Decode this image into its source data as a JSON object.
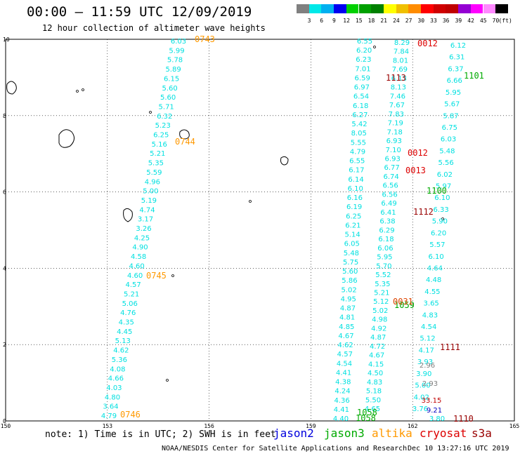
{
  "title": "00:00 – 11:59 UTC 12/09/2019",
  "subtitle": "12 hour collection of altimeter wave heights",
  "colorbar": {
    "colors": [
      "#808080",
      "#00e8e8",
      "#00b0f0",
      "#0000f0",
      "#00d000",
      "#00a000",
      "#008000",
      "#ffff00",
      "#f0c000",
      "#ff8c00",
      "#ff0000",
      "#d00000",
      "#c00000",
      "#9400d3",
      "#ff00ff",
      "#ff88ff",
      "#000000"
    ],
    "labels": [
      "3",
      "6",
      "9",
      "12",
      "15",
      "18",
      "21",
      "24",
      "27",
      "30",
      "33",
      "36",
      "39",
      "42",
      "45",
      "70",
      "(ft)"
    ]
  },
  "axes": {
    "x_ticks": [
      "150",
      "153",
      "156",
      "159",
      "162",
      "165"
    ],
    "y_ticks": [
      "0",
      "2",
      "4",
      "6",
      "8",
      "10"
    ]
  },
  "tracks": {
    "track_a": {
      "color": "#00e0e0",
      "values": [
        "6.03",
        "5.99",
        "5.78",
        "5.89",
        "6.15",
        "5.60",
        "5.60",
        "5.71",
        "6.32",
        "5.23",
        "6.25",
        "5.16",
        "5.21",
        "5.35",
        "5.59",
        "4.96",
        "5.00",
        "5.19",
        "4.74",
        "3.17",
        "3.26",
        "4.25",
        "4.90",
        "4.58",
        "4.60",
        "4.60",
        "4.57",
        "5.21",
        "5.06",
        "4.76",
        "4.35",
        "4.45",
        "5.13",
        "4.62",
        "5.36",
        "4.08",
        "4.66",
        "4.03",
        "4.80",
        "3.64",
        "4.79"
      ]
    },
    "track_b": {
      "color": "#00e0e0",
      "values": [
        "6.55",
        "6.20",
        "6.23",
        "7.01",
        "6.59",
        "6.97",
        "6.54",
        "6.18",
        "6.27",
        "5.42",
        "8.05",
        "5.55",
        "4.79",
        "6.55",
        "6.17",
        "6.14",
        "6.10",
        "6.16",
        "6.19",
        "6.25",
        "6.21",
        "5.14",
        "6.05",
        "5.48",
        "5.75",
        "5.60",
        "5.86",
        "5.02",
        "4.95",
        "4.87",
        "4.81",
        "4.85",
        "4.67",
        "4.62",
        "4.57",
        "4.54",
        "4.41",
        "4.38",
        "4.24",
        "4.36",
        "4.41",
        "4.40"
      ]
    },
    "track_c": {
      "color": "#00e0e0",
      "values": [
        "8.29",
        "7.84",
        "8.01",
        "7.69",
        "6.13",
        "8.13",
        "7.46",
        "7.67",
        "7.83",
        "7.19",
        "7.18",
        "6.93",
        "7.10",
        "6.93",
        "6.77",
        "6.74",
        "6.56",
        "6.56",
        "6.49",
        "6.41",
        "6.38",
        "6.29",
        "6.18",
        "6.06",
        "5.95",
        "5.70",
        "5.52",
        "5.35",
        "5.21",
        "5.12",
        "5.02",
        "4.98",
        "4.92",
        "4.87",
        "4.72",
        "4.67",
        "4.15",
        "4.50",
        "4.83",
        "5.18",
        "5.50",
        "4.65"
      ]
    },
    "track_d": {
      "color": "#00e0e0",
      "values": [
        "6.12",
        "6.31",
        "6.37",
        "6.66",
        "5.95",
        "5.67",
        "5.87",
        "6.75",
        "6.03",
        "5.48",
        "5.56",
        "6.02",
        "5.97",
        "6.10",
        "6.33",
        "5.90",
        "6.20",
        "5.57",
        "6.10",
        "4.64",
        "4.48",
        "4.55",
        "3.65",
        "4.83",
        "4.54",
        "5.12",
        "4.17",
        "3.93",
        "3.90",
        "5.00",
        "4.02",
        "3.76"
      ]
    },
    "track_e": {
      "color": "#808080",
      "values": [
        "2.96",
        "2.93"
      ]
    },
    "track_f": {
      "color": "#c00000",
      "values": [
        "33.15"
      ]
    },
    "track_g": {
      "color": "#0000c0",
      "values": [
        "9.21"
      ]
    },
    "track_h": {
      "color": "#00e0e0",
      "values": [
        "3.80"
      ]
    }
  },
  "times": {
    "orange": [
      "0743",
      "0744",
      "0745",
      "0746"
    ],
    "red": [
      "0012",
      "0012",
      "0013"
    ],
    "darkred": [
      "1113",
      "1112",
      "1111",
      "1110"
    ],
    "green": [
      "1101",
      "1100",
      "1059",
      "1058",
      "1058"
    ],
    "mixed": [
      "0031"
    ]
  },
  "note": "note: 1) Time is in UTC; 2) SWH is in feet",
  "legend": [
    {
      "label": "jason2",
      "color": "#0000dd"
    },
    {
      "label": "jason3",
      "color": "#00aa00"
    },
    {
      "label": "altika",
      "color": "#ff9900"
    },
    {
      "label": "cryosat",
      "color": "#dd0000"
    },
    {
      "label": "s3a",
      "color": "#990000"
    }
  ],
  "footer": "NOAA/NESDIS Center for Satellite Applications and Research",
  "footer_date": "Dec 10 13:27:16 UTC 2019"
}
